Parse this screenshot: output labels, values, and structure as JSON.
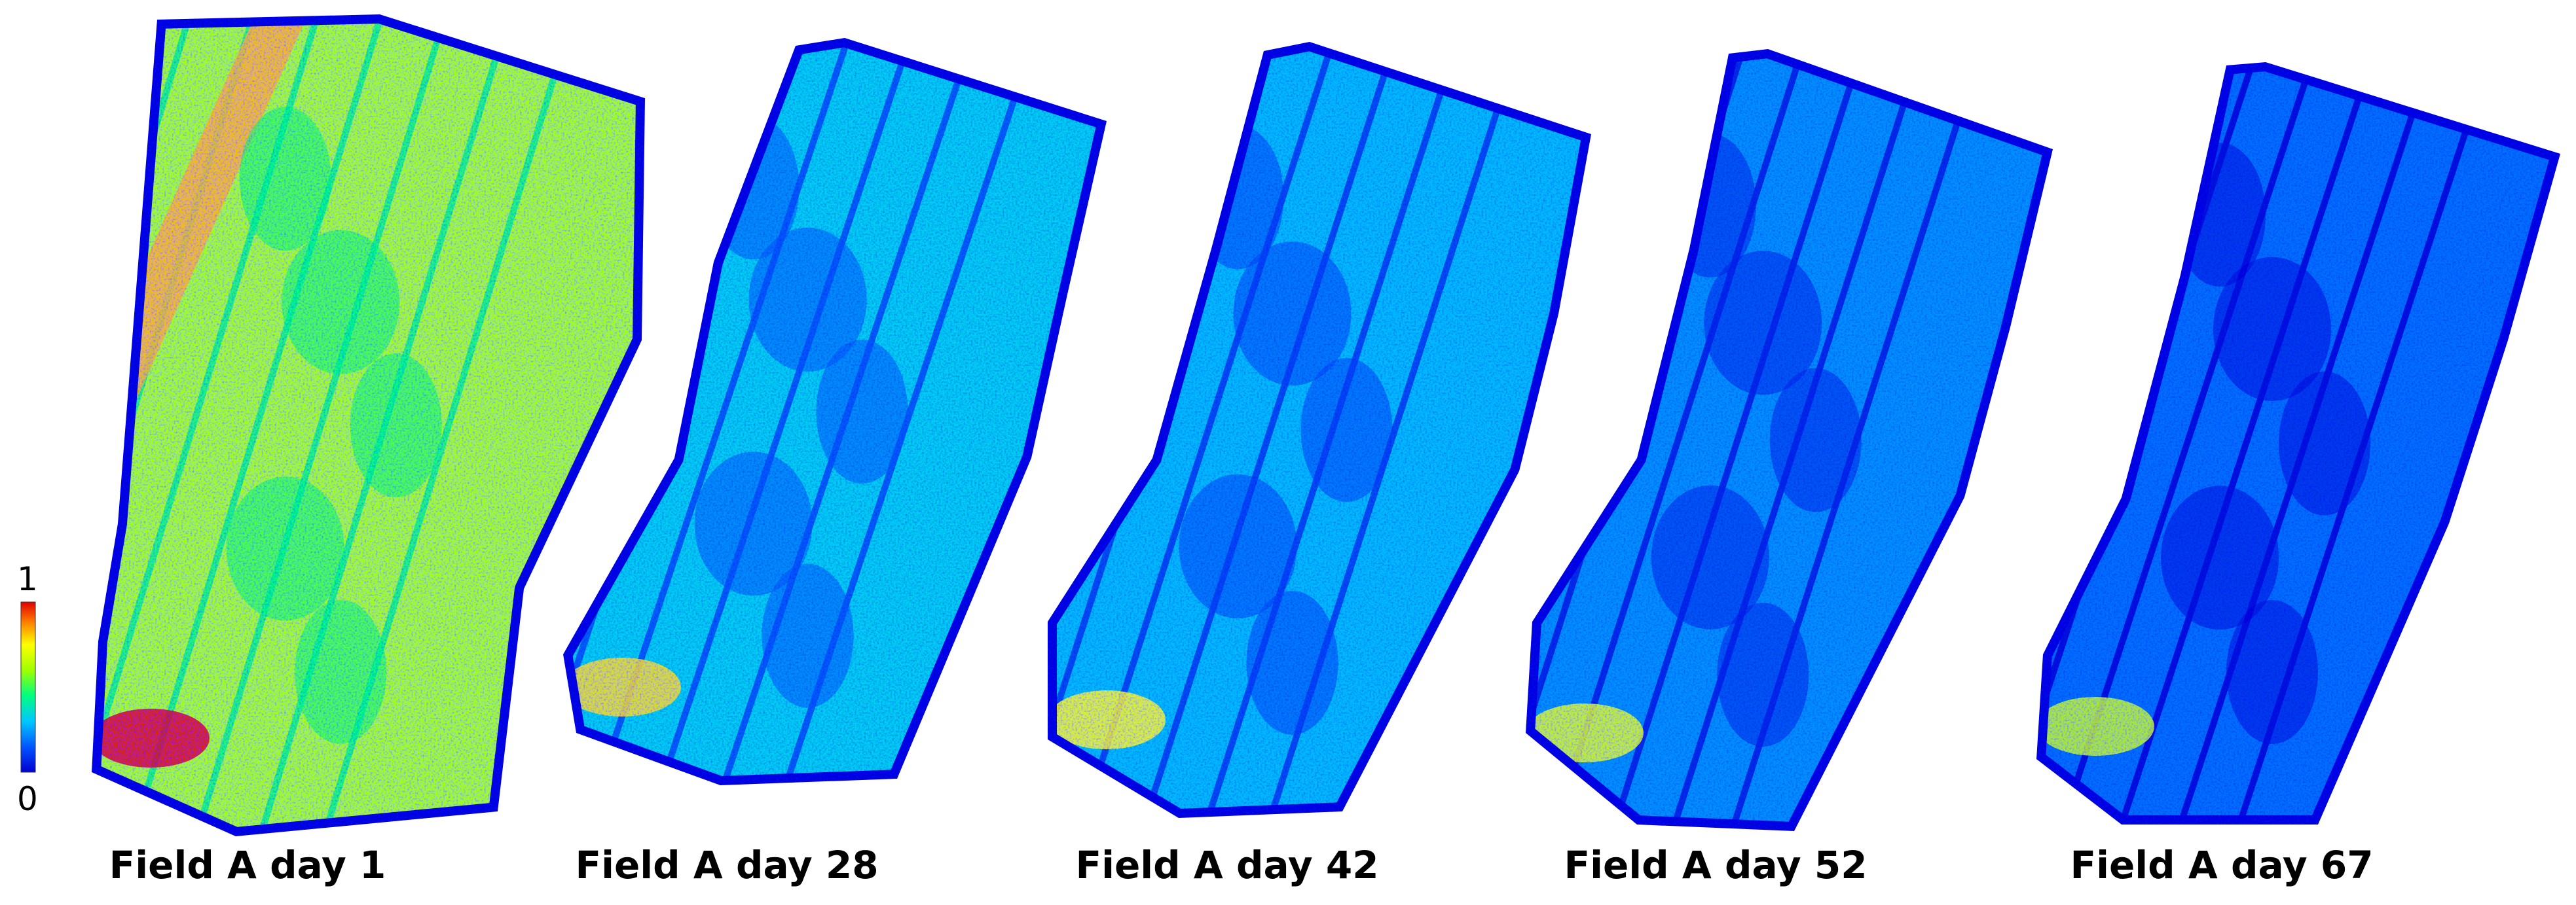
{
  "figure": {
    "panels": [
      {
        "label": "Field A day 1",
        "index_level": 0.58
      },
      {
        "label": "Field A day 28",
        "index_level": 0.3
      },
      {
        "label": "Field A day 42",
        "index_level": 0.27
      },
      {
        "label": "Field A day 52",
        "index_level": 0.22
      },
      {
        "label": "Field A day 67",
        "index_level": 0.18
      }
    ],
    "colorbar": {
      "max_label": "1",
      "min_label": "0",
      "colors": [
        "#0000d0",
        "#0050ff",
        "#00c8ff",
        "#00ff80",
        "#a0ff00",
        "#ffff00",
        "#ff8000",
        "#e00000"
      ]
    }
  }
}
